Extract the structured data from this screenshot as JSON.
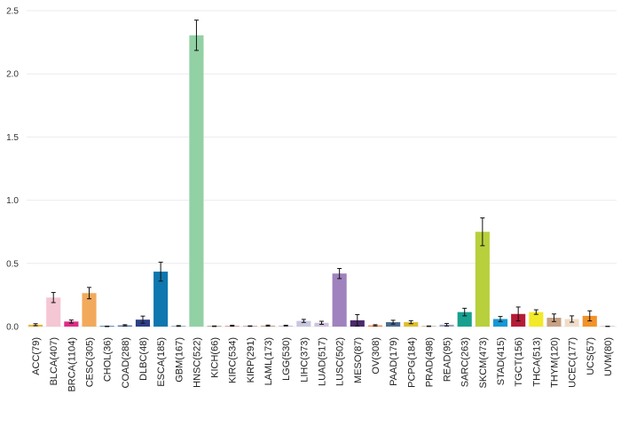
{
  "chart_data": {
    "type": "bar",
    "title": "",
    "xlabel": "",
    "ylabel": "",
    "ylim": [
      0,
      2.5
    ],
    "yticks": [
      0.0,
      0.5,
      1.0,
      1.5,
      2.0,
      2.5
    ],
    "ytick_labels": [
      "0.0",
      "0.5",
      "1.0",
      "1.5",
      "2.0",
      "2.5"
    ],
    "grid": true,
    "legend": "none",
    "categories": [
      "ACC(79)",
      "BLCA(407)",
      "BRCA(1104)",
      "CESC(305)",
      "CHOL(36)",
      "COAD(288)",
      "DLBC(48)",
      "ESCA(185)",
      "GBM(167)",
      "HNSC(522)",
      "KICH(66)",
      "KIRC(534)",
      "KIRP(291)",
      "LAML(173)",
      "LGG(530)",
      "LIHC(373)",
      "LUAD(517)",
      "LUSC(502)",
      "MESO(87)",
      "OV(308)",
      "PAAD(179)",
      "PCPG(184)",
      "PRAD(498)",
      "READ(95)",
      "SARC(263)",
      "SKCM(473)",
      "STAD(415)",
      "TGCT(156)",
      "THCA(513)",
      "THYM(120)",
      "UCEC(177)",
      "UCS(57)",
      "UVM(80)"
    ],
    "values": [
      0.015,
      0.23,
      0.04,
      0.265,
      0.002,
      0.01,
      0.055,
      0.435,
      0.005,
      2.305,
      0.003,
      0.007,
      0.004,
      0.008,
      0.008,
      0.045,
      0.03,
      0.42,
      0.05,
      0.01,
      0.035,
      0.035,
      0.003,
      0.015,
      0.115,
      0.75,
      0.06,
      0.1,
      0.115,
      0.07,
      0.06,
      0.085,
      0.002
    ],
    "errors": [
      0.008,
      0.04,
      0.012,
      0.045,
      0.002,
      0.005,
      0.028,
      0.075,
      0.003,
      0.12,
      0.002,
      0.004,
      0.002,
      0.004,
      0.003,
      0.012,
      0.012,
      0.04,
      0.045,
      0.005,
      0.015,
      0.012,
      0.002,
      0.01,
      0.03,
      0.11,
      0.02,
      0.055,
      0.018,
      0.03,
      0.025,
      0.04,
      0.001
    ],
    "colors": [
      "#e8b83a",
      "#f5c6d4",
      "#de2b86",
      "#f2a95c",
      "#3d6fa8",
      "#5a79b2",
      "#2a3f86",
      "#0e77af",
      "#8b9ec4",
      "#92d1a4",
      "#a89a86",
      "#dfa0a7",
      "#b9a0a0",
      "#c8a88c",
      "#cfc1d7",
      "#c8c6df",
      "#cfc2dc",
      "#9f82be",
      "#4b2a6b",
      "#ef8b44",
      "#4a6a8e",
      "#dcbf2e",
      "#c2b7a8",
      "#98a5bf",
      "#17a090",
      "#b8d03c",
      "#1598d4",
      "#b51c36",
      "#f2e928",
      "#c7a184",
      "#f1dcc9",
      "#f39228",
      "#d4cfc5"
    ]
  }
}
